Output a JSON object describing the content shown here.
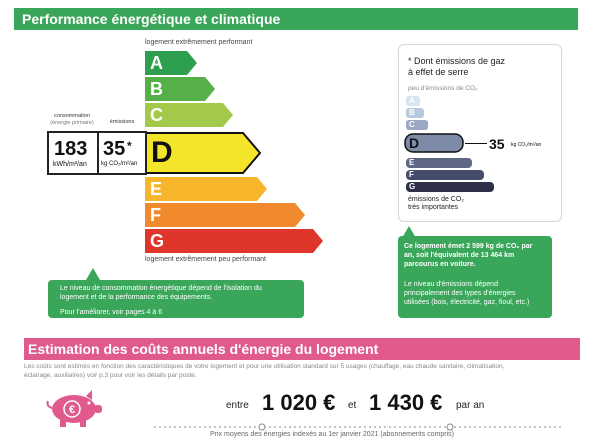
{
  "header": {
    "title": "Performance énergétique et climatique"
  },
  "energy_scale": {
    "top_caption": "logement extrêmement performant",
    "bottom_caption": "logement extrêmement peu performant",
    "classes": [
      {
        "letter": "A",
        "color": "#2e9e4f"
      },
      {
        "letter": "B",
        "color": "#55b047"
      },
      {
        "letter": "C",
        "color": "#a3c94a"
      },
      {
        "letter": "D",
        "color": "#f5e52a"
      },
      {
        "letter": "E",
        "color": "#f7b52c"
      },
      {
        "letter": "F",
        "color": "#f08a2c"
      },
      {
        "letter": "G",
        "color": "#e0352a"
      }
    ],
    "current_class": "D"
  },
  "values": {
    "consumption_label": "consommation",
    "consumption_sublabel": "(énergie primaire)",
    "emissions_label": "émissions",
    "consumption_value": "183",
    "consumption_unit": "kWh/m²/an",
    "emissions_value": "35",
    "emissions_asterisk": "*",
    "emissions_unit": "kg CO₂/m²/an"
  },
  "energy_callout": {
    "line1": "Le niveau de consommation énergétique dépend de l'isolation du",
    "line2": "logement et de la performance des équipements.",
    "line3": "Pour l'améliorer, voir pages 4 à 6"
  },
  "ges": {
    "title_line1": "* Dont émissions de gaz",
    "title_line2": "à effet de serre",
    "top_caption": "peu d'émissions de CO₂",
    "classes": [
      {
        "letter": "A",
        "color": "#d6e4f4"
      },
      {
        "letter": "B",
        "color": "#b9c9df"
      },
      {
        "letter": "C",
        "color": "#9aa8c4"
      },
      {
        "letter": "D",
        "color": "#7d8aa8"
      },
      {
        "letter": "E",
        "color": "#5e6786"
      },
      {
        "letter": "F",
        "color": "#454b68"
      },
      {
        "letter": "G",
        "color": "#2d3047"
      }
    ],
    "current_class": "D",
    "value": "35",
    "unit": "kg CO₂/m²/an",
    "bottom_caption_line1": "émissions de CO₂",
    "bottom_caption_line2": "très importantes"
  },
  "ges_callout": {
    "bold_line1": "Ce logement émet 2 599 kg de CO₂ par",
    "bold_line2": "an, soit l'équivalent de 13 464 km",
    "bold_line3": "parcourus en voiture.",
    "line4": "Le niveau d'émissions dépend",
    "line5": "principalement des types d'énergies",
    "line6": "utilisées (bois, électricité, gaz, fioul, etc.)"
  },
  "costs": {
    "title": "Estimation des coûts annuels d'énergie du logement",
    "note_line1": "Les coûts sont estimés en fonction des caractéristiques de votre logement et pour une utilisation standard sur 5 usages (chauffage, eau chaude sanitaire, climatisation,",
    "note_line2": "éclairage, auxiliaires) voir p.3 pour voir les détails par poste.",
    "between_word": "entre",
    "low_value": "1 020 €",
    "and_word": "et",
    "high_value": "1 430 €",
    "per_year": "par an",
    "footnote": "Prix moyens des énergies indexés au 1er janvier 2021 (abonnements compris)",
    "piggy_symbol": "€",
    "piggy_color": "#e05a8e"
  }
}
